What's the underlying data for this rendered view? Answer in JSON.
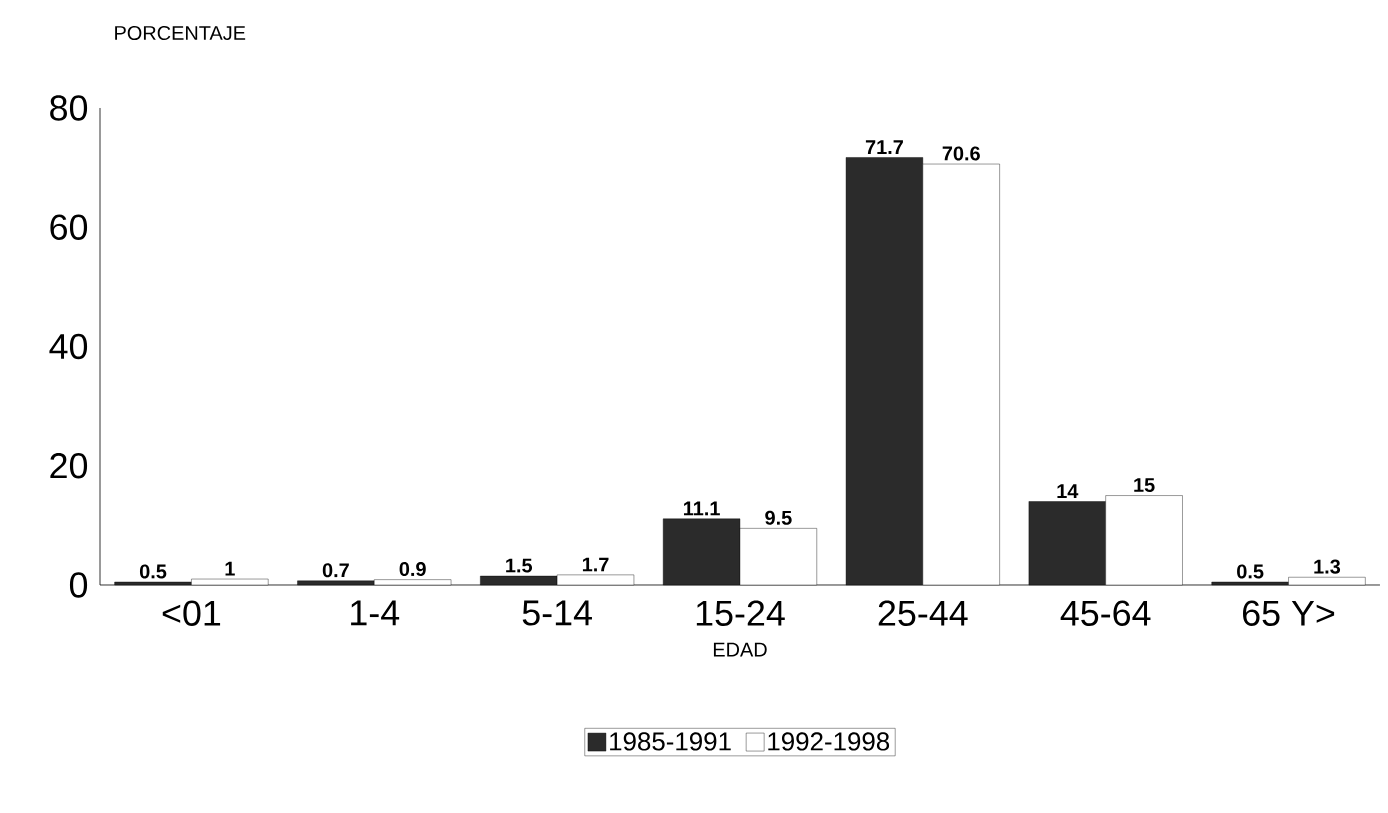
{
  "chart_data": {
    "type": "bar",
    "ylabel": "PORCENTAJE",
    "xlabel": "EDAD",
    "categories": [
      "<01",
      "1-4",
      "5-14",
      "15-24",
      "25-44",
      "45-64",
      "65 Y>"
    ],
    "series": [
      {
        "name": "1985-1991",
        "color": "#2b2b2b",
        "values": [
          0.5,
          0.7,
          1.5,
          11.1,
          71.7,
          14,
          0.5
        ]
      },
      {
        "name": "1992-1998",
        "color": "#ffffff",
        "values": [
          1,
          0.9,
          1.7,
          9.5,
          70.6,
          15,
          1.3
        ]
      }
    ],
    "ylim": [
      0,
      80
    ],
    "yticks": [
      0,
      20,
      40,
      60,
      80
    ],
    "data_labels": true,
    "legend": "bottom",
    "grid": false
  }
}
